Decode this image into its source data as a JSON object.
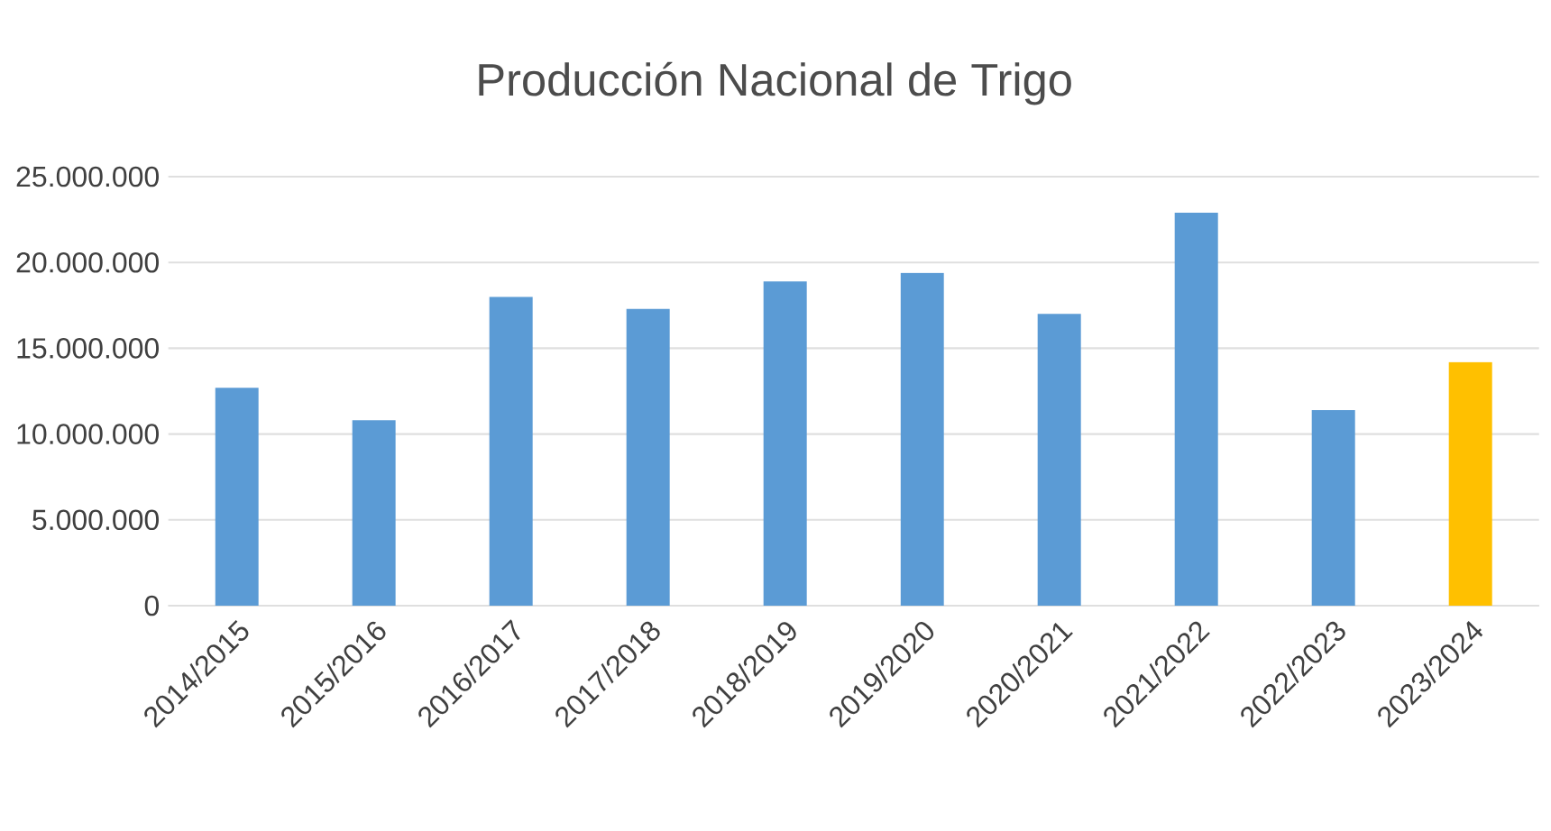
{
  "chart_data": {
    "type": "bar",
    "title": "Producción Nacional de Trigo",
    "categories": [
      "2014/2015",
      "2015/2016",
      "2016/2017",
      "2017/2018",
      "2018/2019",
      "2019/2020",
      "2020/2021",
      "2021/2022",
      "2022/2023",
      "2023/2024"
    ],
    "values": [
      12700000,
      10800000,
      18000000,
      17300000,
      18900000,
      19400000,
      17000000,
      22900000,
      11400000,
      14200000
    ],
    "colors": [
      "#5b9bd5",
      "#5b9bd5",
      "#5b9bd5",
      "#5b9bd5",
      "#5b9bd5",
      "#5b9bd5",
      "#5b9bd5",
      "#5b9bd5",
      "#5b9bd5",
      "#ffc000"
    ],
    "ylim": [
      0,
      25000000
    ],
    "yticks": [
      0,
      {
        "value": 5000000,
        "label": "5.000.000"
      },
      {
        "value": 10000000,
        "label": "10.000.000"
      },
      {
        "value": 15000000,
        "label": "15.000.000"
      },
      {
        "value": 20000000,
        "label": "20.000.000"
      },
      {
        "value": 25000000,
        "label": "25.000.000"
      }
    ],
    "grid": "y"
  }
}
